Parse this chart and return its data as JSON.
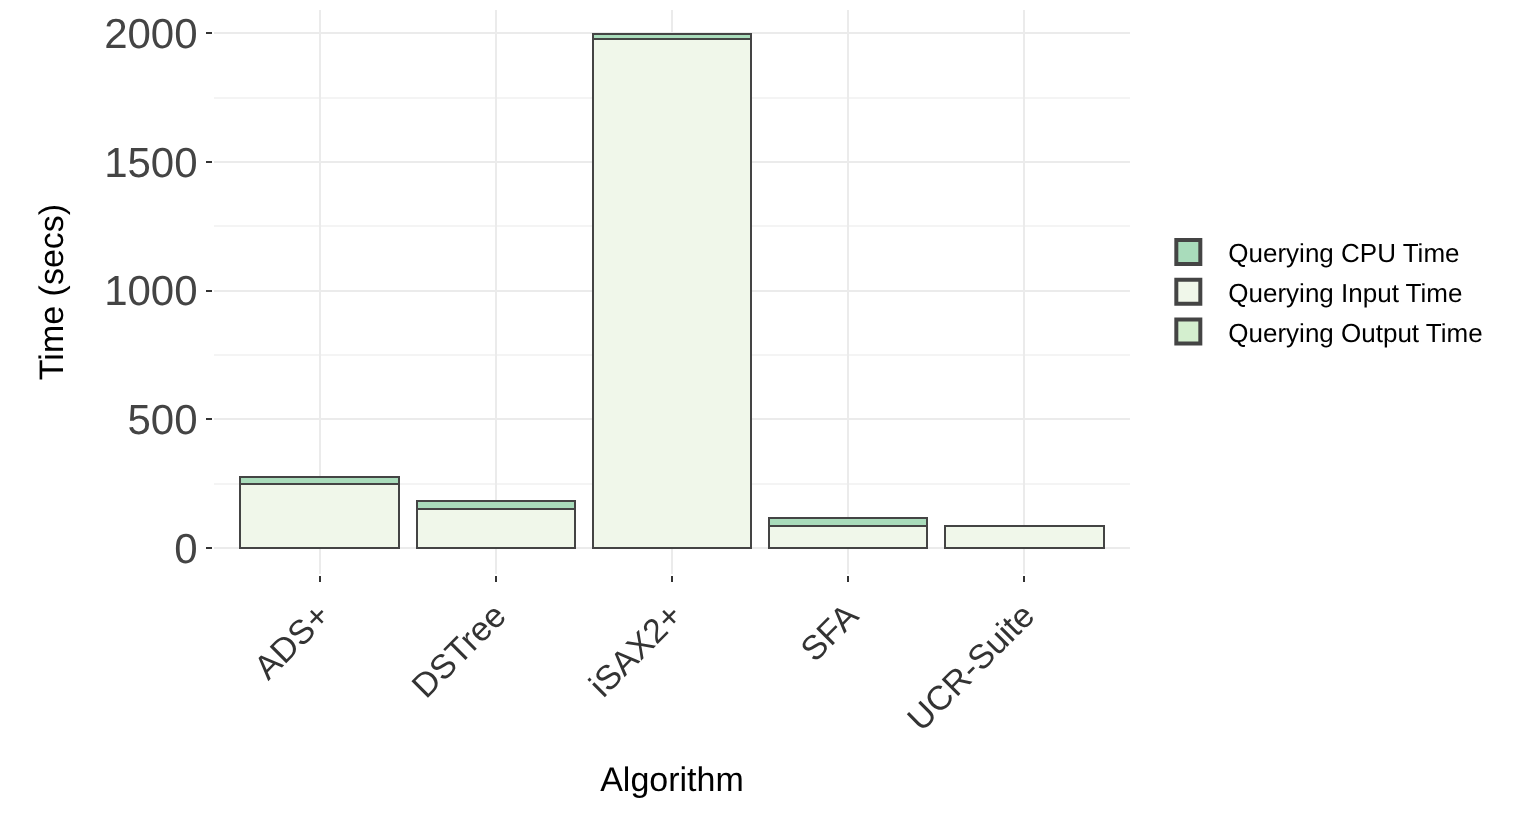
{
  "chart_data": {
    "type": "bar",
    "stacked": true,
    "xlabel": "Algorithm",
    "ylabel": "Time (secs)",
    "categories": [
      "ADS+",
      "DSTree",
      "iSAX2+",
      "SFA",
      "UCR-Suite"
    ],
    "series": [
      {
        "name": "Querying Output Time",
        "color": "#d4efcf",
        "values": [
          0,
          0,
          0,
          0,
          0
        ]
      },
      {
        "name": "Querying Input Time",
        "color": "#f0f7ea",
        "values": [
          251,
          151,
          1976,
          85,
          85
        ]
      },
      {
        "name": "Querying CPU Time",
        "color": "#a9dcbb",
        "values": [
          26,
          34,
          21,
          33,
          2
        ]
      }
    ],
    "ylim": [
      -100,
      2090
    ],
    "yticks": [
      0,
      500,
      1000,
      1500,
      2000
    ],
    "grid": true,
    "legend": "right"
  }
}
